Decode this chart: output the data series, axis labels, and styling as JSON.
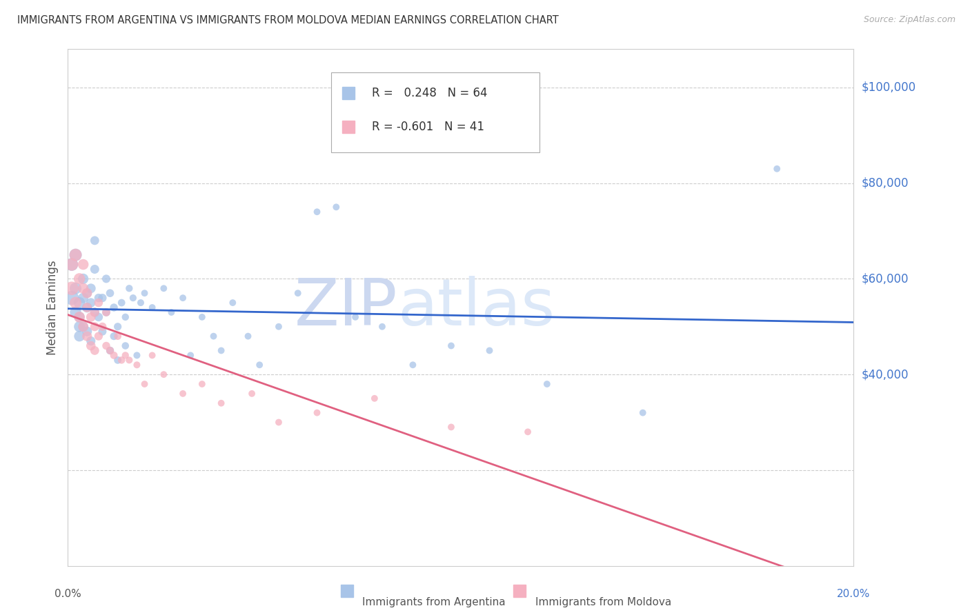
{
  "title": "IMMIGRANTS FROM ARGENTINA VS IMMIGRANTS FROM MOLDOVA MEDIAN EARNINGS CORRELATION CHART",
  "source": "Source: ZipAtlas.com",
  "ylabel": "Median Earnings",
  "xlim": [
    0.0,
    0.205
  ],
  "ylim": [
    0,
    108000
  ],
  "argentina_R": 0.248,
  "argentina_N": 64,
  "moldova_R": -0.601,
  "moldova_N": 41,
  "argentina_color": "#a8c4e8",
  "moldova_color": "#f5b0c0",
  "argentina_line_color": "#3366cc",
  "moldova_line_color": "#e06080",
  "ytick_color": "#4477cc",
  "background_color": "#ffffff",
  "grid_color": "#cccccc",
  "watermark_color": "#ccd8f0",
  "argentina_x": [
    0.001,
    0.001,
    0.002,
    0.002,
    0.002,
    0.003,
    0.003,
    0.003,
    0.003,
    0.004,
    0.004,
    0.004,
    0.005,
    0.005,
    0.005,
    0.006,
    0.006,
    0.006,
    0.007,
    0.007,
    0.007,
    0.008,
    0.008,
    0.009,
    0.009,
    0.01,
    0.01,
    0.011,
    0.011,
    0.012,
    0.012,
    0.013,
    0.013,
    0.014,
    0.015,
    0.015,
    0.016,
    0.017,
    0.018,
    0.019,
    0.02,
    0.022,
    0.025,
    0.027,
    0.03,
    0.032,
    0.035,
    0.038,
    0.04,
    0.043,
    0.047,
    0.05,
    0.055,
    0.06,
    0.065,
    0.07,
    0.075,
    0.082,
    0.09,
    0.1,
    0.11,
    0.125,
    0.15,
    0.185
  ],
  "argentina_y": [
    56000,
    63000,
    65000,
    58000,
    53000,
    55000,
    50000,
    48000,
    52000,
    60000,
    56000,
    50000,
    54000,
    49000,
    57000,
    58000,
    55000,
    47000,
    53000,
    62000,
    68000,
    52000,
    56000,
    56000,
    49000,
    60000,
    53000,
    57000,
    45000,
    54000,
    48000,
    50000,
    43000,
    55000,
    46000,
    52000,
    58000,
    56000,
    44000,
    55000,
    57000,
    54000,
    58000,
    53000,
    56000,
    44000,
    52000,
    48000,
    45000,
    55000,
    48000,
    42000,
    50000,
    57000,
    74000,
    75000,
    52000,
    50000,
    42000,
    46000,
    45000,
    38000,
    32000,
    83000
  ],
  "moldova_x": [
    0.001,
    0.001,
    0.002,
    0.002,
    0.003,
    0.003,
    0.004,
    0.004,
    0.004,
    0.005,
    0.005,
    0.005,
    0.006,
    0.006,
    0.007,
    0.007,
    0.007,
    0.008,
    0.008,
    0.009,
    0.01,
    0.01,
    0.011,
    0.012,
    0.013,
    0.014,
    0.015,
    0.016,
    0.018,
    0.02,
    0.022,
    0.025,
    0.03,
    0.035,
    0.04,
    0.048,
    0.055,
    0.065,
    0.08,
    0.1,
    0.12
  ],
  "moldova_y": [
    58000,
    63000,
    65000,
    55000,
    60000,
    52000,
    63000,
    58000,
    50000,
    57000,
    48000,
    54000,
    52000,
    46000,
    53000,
    50000,
    45000,
    55000,
    48000,
    50000,
    53000,
    46000,
    45000,
    44000,
    48000,
    43000,
    44000,
    43000,
    42000,
    38000,
    44000,
    40000,
    36000,
    38000,
    34000,
    36000,
    30000,
    32000,
    35000,
    29000,
    28000
  ],
  "argentina_sizes": [
    220,
    180,
    170,
    150,
    140,
    140,
    130,
    125,
    120,
    120,
    115,
    110,
    110,
    105,
    100,
    100,
    95,
    90,
    90,
    88,
    85,
    82,
    80,
    78,
    75,
    75,
    72,
    70,
    68,
    68,
    65,
    65,
    62,
    60,
    58,
    56,
    55,
    54,
    52,
    52,
    50,
    50,
    50,
    50,
    50,
    50,
    50,
    50,
    50,
    50,
    50,
    50,
    50,
    50,
    50,
    50,
    50,
    50,
    50,
    50,
    50,
    50,
    50,
    50
  ],
  "moldova_sizes": [
    200,
    175,
    165,
    150,
    140,
    130,
    125,
    120,
    115,
    110,
    105,
    100,
    98,
    95,
    92,
    88,
    85,
    82,
    78,
    75,
    72,
    68,
    65,
    62,
    60,
    58,
    55,
    53,
    52,
    50,
    50,
    50,
    50,
    50,
    50,
    50,
    50,
    50,
    50,
    50,
    50
  ],
  "ytick_vals": [
    40000,
    60000,
    80000,
    100000
  ],
  "ytick_labels": [
    "$40,000",
    "$60,000",
    "$80,000",
    "$100,000"
  ],
  "grid_vals": [
    20000,
    40000,
    60000,
    80000,
    100000
  ],
  "legend_label_argentina": "Immigrants from Argentina",
  "legend_label_moldova": "Immigrants from Moldova"
}
